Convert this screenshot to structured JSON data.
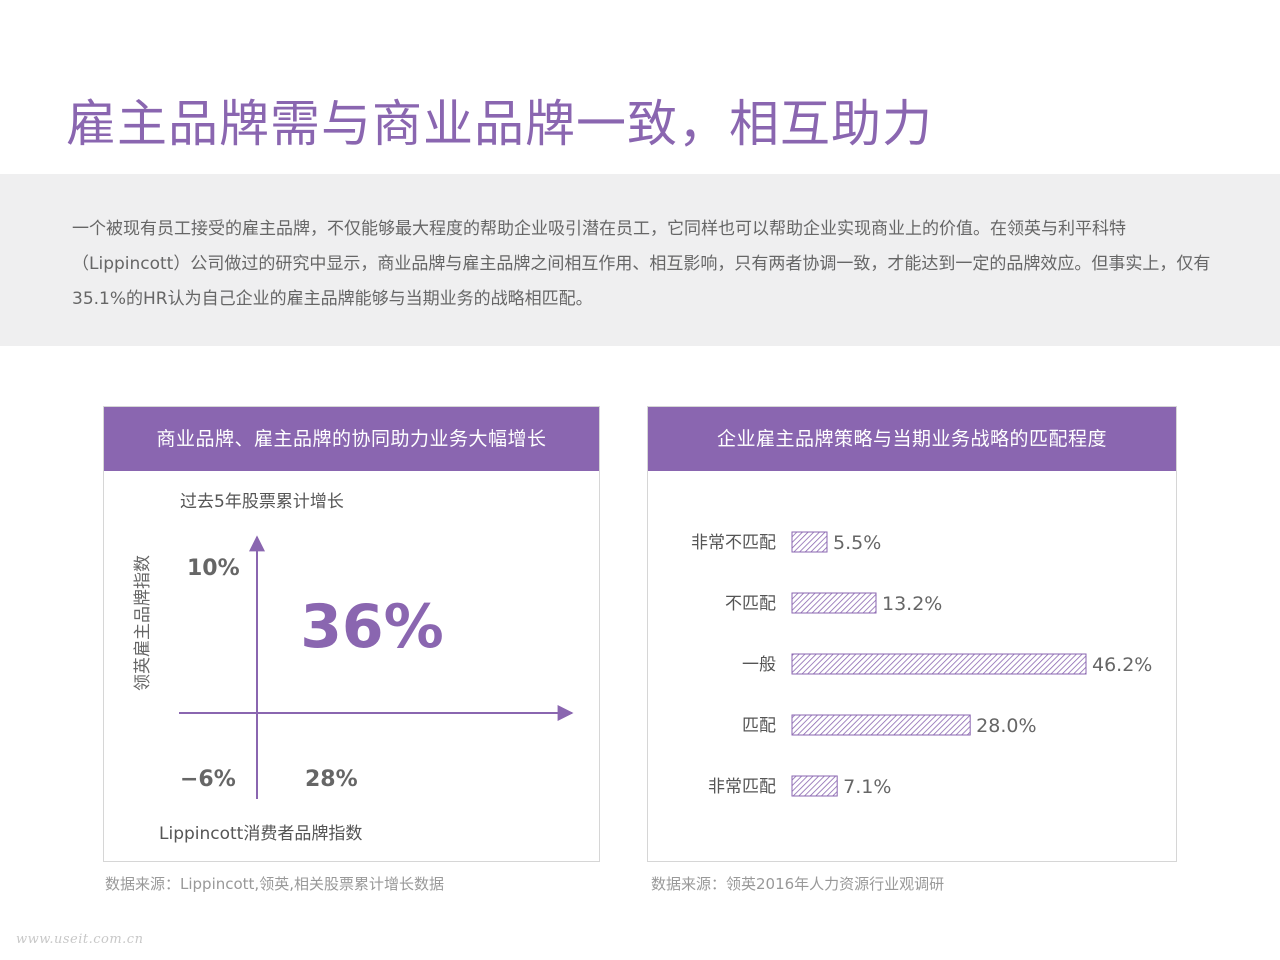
{
  "page": {
    "title": "雇主品牌需与商业品牌一致，相互助力",
    "intro": "一个被现有员工接受的雇主品牌，不仅能够最大程度的帮助企业吸引潜在员工，它同样也可以帮助企业实现商业上的价值。在领英与利平科特（Lippincott）公司做过的研究中显示，商业品牌与雇主品牌之间相互作用、相互影响，只有两者协调一致，才能达到一定的品牌效应。但事实上，仅有35.1%的HR认为自己企业的雇主品牌能够与当期业务的战略相匹配。",
    "watermark": "www.useit.com.cn"
  },
  "colors": {
    "accent": "#8a66b0",
    "panel_bg": "#efeff0",
    "text": "#666666",
    "hatch": "#8a66b0"
  },
  "chart_data": [
    {
      "type": "scatter",
      "title": "商业品牌、雇主品牌的协同助力业务大幅增长",
      "subtitle": "过去5年股票累计增长",
      "xlabel": "Lippincott消费者品牌指数",
      "ylabel": "领英雇主品牌指数",
      "quadrant_values": {
        "top_left": "10%",
        "top_right": "36%",
        "bottom_left": "−6%",
        "bottom_right": "28%"
      },
      "source": "数据来源：Lippincott,领英,相关股票累计增长数据"
    },
    {
      "type": "bar",
      "orientation": "horizontal",
      "title": "企业雇主品牌策略与当期业务战略的匹配程度",
      "categories": [
        "非常不匹配",
        "不匹配",
        "一般",
        "匹配",
        "非常匹配"
      ],
      "values": [
        5.5,
        13.2,
        46.2,
        28.0,
        7.1
      ],
      "value_labels": [
        "5.5%",
        "13.2%",
        "46.2%",
        "28.0%",
        "7.1%"
      ],
      "unit": "%",
      "xlim": [
        0,
        46.2
      ],
      "source": "数据来源：领英2016年人力资源行业观调研"
    }
  ]
}
